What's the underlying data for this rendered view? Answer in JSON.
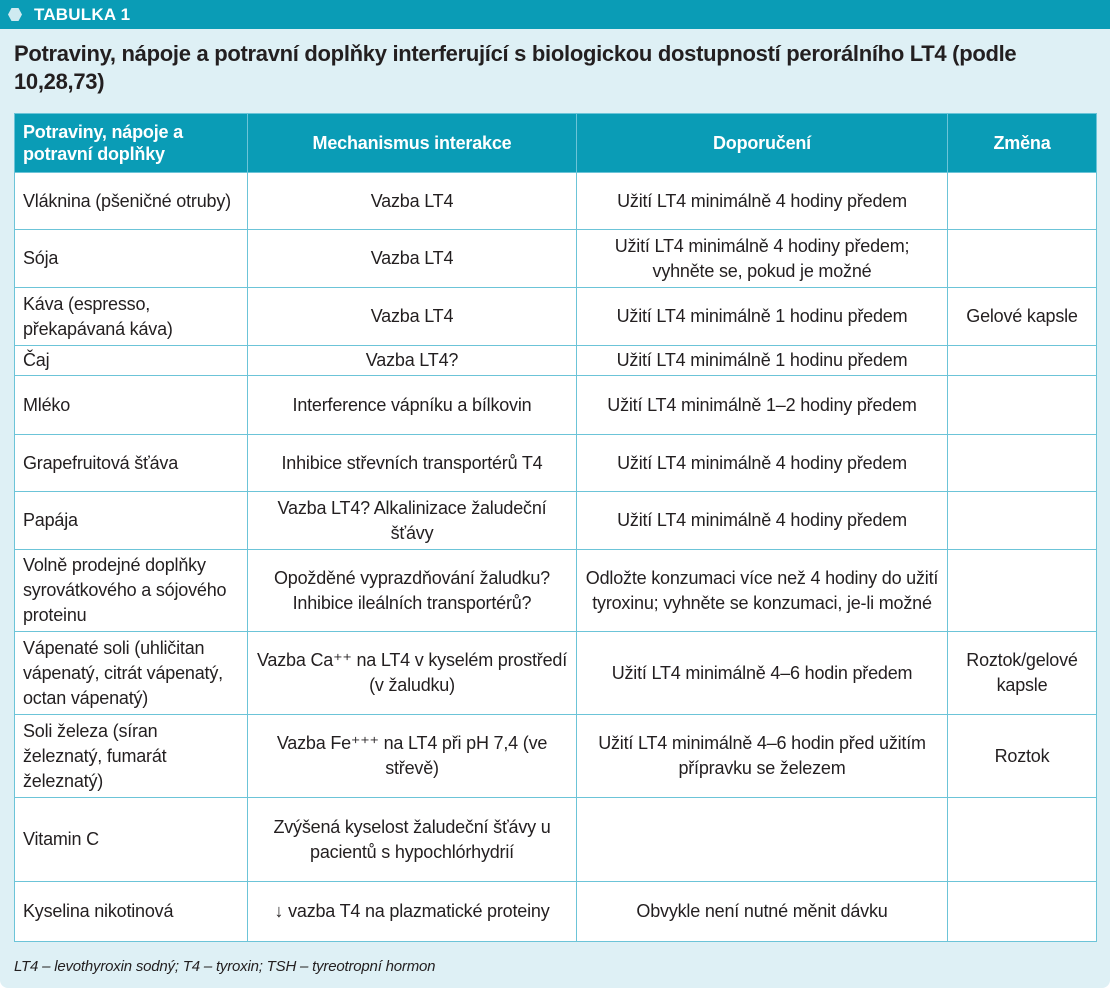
{
  "header": {
    "label": "TABULKA 1",
    "icon": "hexagon-icon",
    "accent": "#0a9cb6"
  },
  "title": "Potraviny, nápoje a potravní doplňky interferující s biologickou dostupností perorálního LT4 (podle 10,28,73)",
  "table": {
    "columns": [
      "Potraviny, nápoje a potravní doplňky",
      "Mechanismus interakce",
      "Doporučení",
      "Změna"
    ],
    "rows": [
      [
        "Vláknina (pšeničné otruby)",
        "Vazba LT4",
        "Užití LT4 minimálně 4 hodiny předem",
        ""
      ],
      [
        "Sója",
        "Vazba LT4",
        "Užití LT4 minimálně 4 hodiny předem; vyhněte se, pokud je možné",
        ""
      ],
      [
        "Káva (espresso, překapávaná káva)",
        "Vazba LT4",
        "Užití LT4 minimálně 1 hodinu předem",
        "Gelové kapsle"
      ],
      [
        "Čaj",
        "Vazba LT4?",
        "Užití LT4 minimálně 1 hodinu předem",
        ""
      ],
      [
        "Mléko",
        "Interference vápníku a bílkovin",
        "Užití LT4 minimálně 1–2 hodiny předem",
        ""
      ],
      [
        "Grapefruitová šťáva",
        "Inhibice střevních transportérů T4",
        "Užití LT4 minimálně 4 hodiny předem",
        ""
      ],
      [
        "Papája",
        "Vazba LT4? Alkalinizace žaludeční šťávy",
        "Užití LT4 minimálně 4 hodiny předem",
        ""
      ],
      [
        "Volně prodejné doplňky syrovátkového a sójového proteinu",
        "Opožděné vyprazdňování žaludku? Inhibice ileálních transportérů?",
        "Odložte konzumaci více než 4 hodiny do užití tyroxinu; vyhněte se konzumaci, je-li možné",
        ""
      ],
      [
        "Vápenaté soli (uhličitan vápenatý, citrát vápenatý, octan vápenatý)",
        "Vazba Ca⁺⁺ na LT4 v kyselém prostředí (v žaludku)",
        "Užití LT4 minimálně 4–6 hodin předem",
        "Roztok/gelové kapsle"
      ],
      [
        "Soli železa (síran železnatý, fumarát železnatý)",
        "Vazba Fe⁺⁺⁺ na LT4 při pH 7,4 (ve střevě)",
        "Užití LT4 minimálně 4–6 hodin před užitím přípravku se železem",
        "Roztok"
      ],
      [
        "Vitamin C",
        "Zvýšená kyselost žaludeční šťávy u pacientů s hypochlórhydrií",
        "",
        ""
      ],
      [
        "Kyselina nikotinová",
        "↓ vazba T4 na plazmatické proteiny",
        "Obvykle není nutné měnit dávku",
        ""
      ]
    ]
  },
  "footnote": "LT4 – levothyroxin sodný; T4 – tyroxin; TSH – tyreotropní hormon"
}
